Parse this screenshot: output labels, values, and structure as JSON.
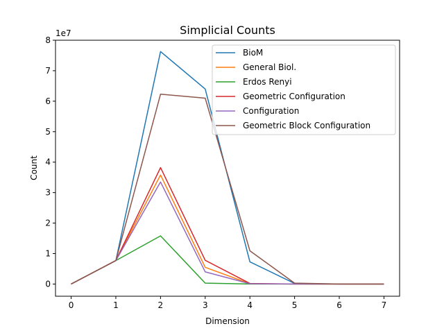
{
  "chart_data": {
    "type": "line",
    "title": "Simplicial Counts",
    "xlabel": "Dimension",
    "ylabel": "Count",
    "y_offset_label": "1e7",
    "x": [
      0,
      1,
      2,
      3,
      4,
      5,
      6,
      7
    ],
    "xlim": [
      -0.35,
      7.35
    ],
    "ylim": [
      -4000000,
      80000000
    ],
    "x_ticks": [
      "0",
      "1",
      "2",
      "3",
      "4",
      "5",
      "6",
      "7"
    ],
    "y_ticks": [
      "0",
      "1",
      "2",
      "3",
      "4",
      "5",
      "6",
      "7",
      "8"
    ],
    "grid": false,
    "legend_position": "top-right",
    "series": [
      {
        "name": "BioM",
        "color": "#1f77b4",
        "values": [
          0,
          7700000,
          76300000,
          64000000,
          7300000,
          200000,
          0,
          0
        ]
      },
      {
        "name": "General Biol.",
        "color": "#ff7f0e",
        "values": [
          0,
          7700000,
          35800000,
          5500000,
          100000,
          0,
          0,
          0
        ]
      },
      {
        "name": "Erdos Renyi",
        "color": "#2ca02c",
        "values": [
          0,
          7700000,
          15800000,
          300000,
          0,
          0,
          0,
          0
        ]
      },
      {
        "name": "Geometric Configuration",
        "color": "#d62728",
        "values": [
          0,
          7700000,
          38200000,
          7800000,
          200000,
          0,
          0,
          0
        ]
      },
      {
        "name": "Configuration",
        "color": "#9467bd",
        "values": [
          0,
          7700000,
          33500000,
          4000000,
          100000,
          0,
          0,
          0
        ]
      },
      {
        "name": "Geometric Block Configuration",
        "color": "#8c564b",
        "values": [
          0,
          7700000,
          62300000,
          61000000,
          10900000,
          300000,
          0,
          0
        ]
      }
    ]
  }
}
